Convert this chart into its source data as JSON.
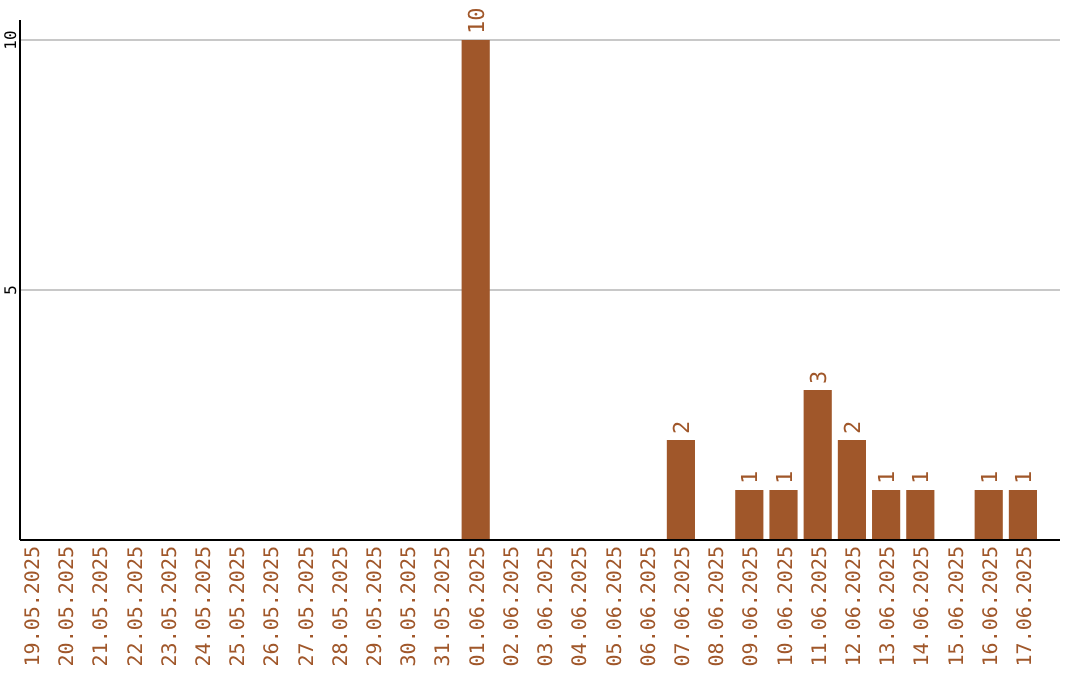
{
  "chart_data": {
    "type": "bar",
    "categories": [
      "19.05.2025",
      "20.05.2025",
      "21.05.2025",
      "22.05.2025",
      "23.05.2025",
      "24.05.2025",
      "25.05.2025",
      "26.05.2025",
      "27.05.2025",
      "28.05.2025",
      "29.05.2025",
      "30.05.2025",
      "31.05.2025",
      "01.06.2025",
      "02.06.2025",
      "03.06.2025",
      "04.06.2025",
      "05.06.2025",
      "06.06.2025",
      "07.06.2025",
      "08.06.2025",
      "09.06.2025",
      "10.06.2025",
      "11.06.2025",
      "12.06.2025",
      "13.06.2025",
      "14.06.2025",
      "15.06.2025",
      "16.06.2025",
      "17.06.2025"
    ],
    "values": [
      0,
      0,
      0,
      0,
      0,
      0,
      0,
      0,
      0,
      0,
      0,
      0,
      0,
      10,
      0,
      0,
      0,
      0,
      0,
      2,
      0,
      1,
      1,
      3,
      2,
      1,
      1,
      0,
      1,
      1
    ],
    "value_labels": [
      null,
      null,
      null,
      null,
      null,
      null,
      null,
      null,
      null,
      null,
      null,
      null,
      null,
      "10",
      null,
      null,
      null,
      null,
      null,
      "2",
      null,
      "1",
      "1",
      "3",
      "2",
      "1",
      "1",
      null,
      "1",
      "1"
    ],
    "color": "#a0572a",
    "ylim": [
      0,
      10
    ],
    "yticks": [
      {
        "value": 0,
        "label": null
      },
      5,
      10
    ],
    "grid": "y"
  }
}
